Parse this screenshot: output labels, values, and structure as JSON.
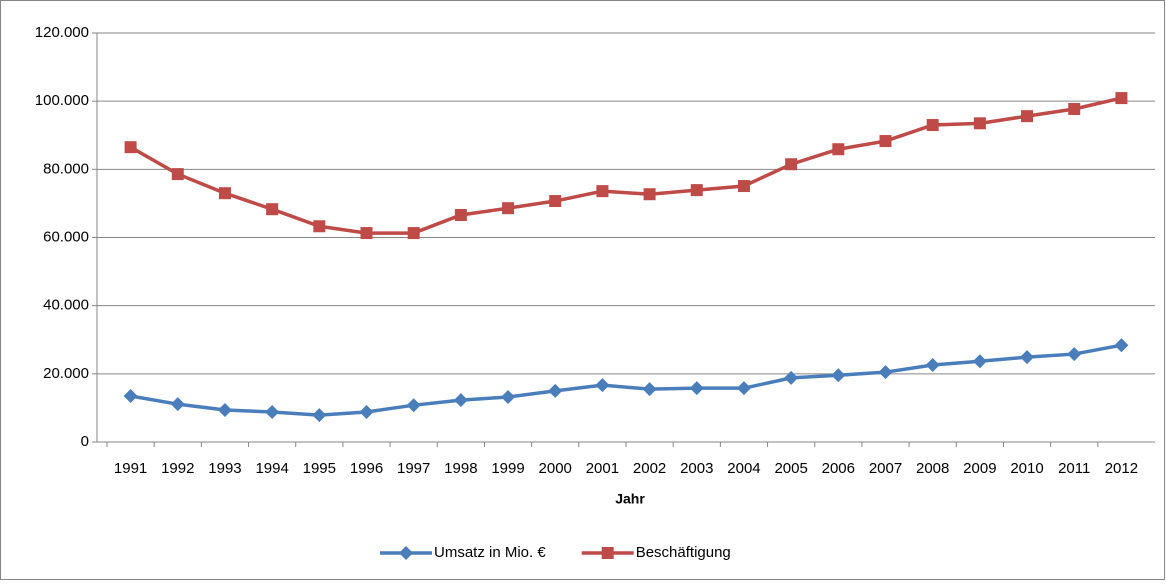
{
  "chart_data": {
    "type": "line",
    "x_label": "Jahr",
    "categories": [
      "1991",
      "1992",
      "1993",
      "1994",
      "1995",
      "1996",
      "1997",
      "1998",
      "1999",
      "2000",
      "2001",
      "2002",
      "2003",
      "2004",
      "2005",
      "2006",
      "2007",
      "2008",
      "2009",
      "2010",
      "2011",
      "2012"
    ],
    "series": [
      {
        "name": "Umsatz in Mio. €",
        "color": "#4a7ebb",
        "marker": "diamond",
        "values": [
          13500,
          11100,
          9400,
          8800,
          7900,
          8800,
          10800,
          12300,
          13200,
          15000,
          16700,
          15500,
          15800,
          15800,
          18800,
          19600,
          20500,
          22600,
          23700,
          24900,
          25800,
          28400
        ]
      },
      {
        "name": "Beschäftigung",
        "color": "#be4b48",
        "marker": "square",
        "values": [
          86500,
          78600,
          73000,
          68300,
          63300,
          61300,
          61300,
          66600,
          68600,
          70700,
          73600,
          72700,
          73900,
          75100,
          81500,
          85900,
          88300,
          93000,
          93500,
          95600,
          97700,
          100900
        ]
      }
    ],
    "ylim": [
      0,
      120000
    ],
    "yticks": [
      0,
      {
        "value": 20000,
        "label": "20.000"
      },
      {
        "value": 40000,
        "label": "40.000"
      },
      {
        "value": 60000,
        "label": "60.000"
      },
      {
        "value": 80000,
        "label": "80.000"
      },
      {
        "value": 100000,
        "label": "100.000"
      },
      {
        "value": 120000,
        "label": "120.000"
      }
    ],
    "grid": true,
    "legend": "bottom"
  }
}
